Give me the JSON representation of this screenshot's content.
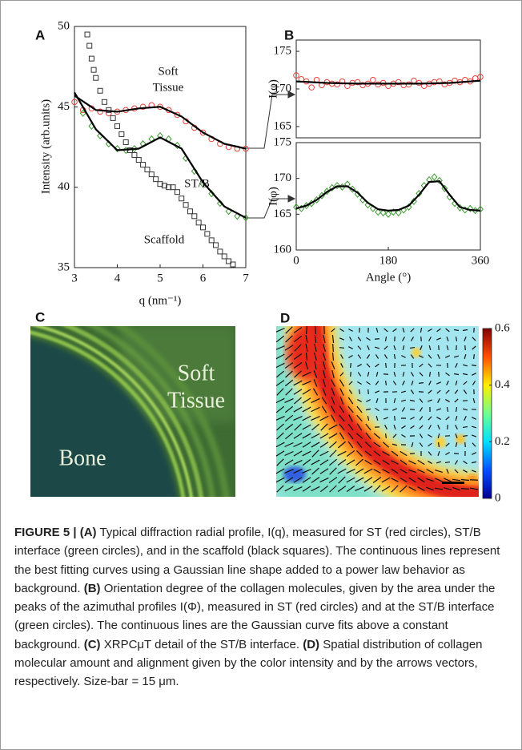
{
  "chart_data": [
    {
      "type": "scatter",
      "panel": "A",
      "xlabel": "q (nm⁻¹)",
      "ylabel": "Intensity (arb.units)",
      "xlim": [
        3,
        7
      ],
      "ylim": [
        35,
        50
      ],
      "xticks": [
        3,
        4,
        5,
        6,
        7
      ],
      "yticks": [
        35,
        40,
        45,
        50
      ],
      "annotations": [
        "Soft",
        "Tissue",
        "ST/B",
        "Scaffold"
      ],
      "series": [
        {
          "color": "#e8423a",
          "marker": "circle",
          "x": [
            3.0,
            3.2,
            3.4,
            3.6,
            3.8,
            4.0,
            4.2,
            4.4,
            4.6,
            4.8,
            5.0,
            5.2,
            5.4,
            5.6,
            5.8,
            6.0,
            6.2,
            6.4,
            6.6,
            6.8,
            7.0
          ],
          "values": [
            45.3,
            44.8,
            44.9,
            44.7,
            44.6,
            44.7,
            44.8,
            44.9,
            45.0,
            45.1,
            45.0,
            44.8,
            44.5,
            44.1,
            43.7,
            43.4,
            43.0,
            42.7,
            42.5,
            42.4,
            42.4
          ]
        },
        {
          "color": "#3a9a2e",
          "marker": "diamond",
          "x": [
            3.2,
            3.4,
            3.6,
            3.8,
            4.0,
            4.2,
            4.4,
            4.6,
            4.8,
            5.0,
            5.2,
            5.4,
            5.6,
            5.8,
            6.0,
            6.2,
            6.4,
            6.6,
            6.8,
            7.0
          ],
          "values": [
            44.6,
            43.8,
            43.2,
            42.7,
            42.4,
            42.3,
            42.4,
            42.7,
            43.0,
            43.2,
            43.0,
            42.6,
            41.8,
            41.0,
            40.2,
            39.6,
            39.0,
            38.5,
            38.2,
            38.1
          ]
        },
        {
          "color": "#333333",
          "marker": "square",
          "x": [
            3.3,
            3.35,
            3.4,
            3.45,
            3.5,
            3.6,
            3.7,
            3.8,
            3.9,
            4.0,
            4.1,
            4.2,
            4.3,
            4.4,
            4.5,
            4.6,
            4.7,
            4.8,
            4.9,
            5.0,
            5.1,
            5.2,
            5.3,
            5.4,
            5.5,
            5.6,
            5.7,
            5.8,
            5.9,
            6.0,
            6.1,
            6.2,
            6.3,
            6.4,
            6.5,
            6.6,
            6.7
          ],
          "values": [
            49.5,
            48.8,
            48.0,
            47.3,
            46.8,
            46.0,
            45.3,
            44.8,
            44.3,
            43.8,
            43.3,
            42.8,
            42.3,
            42.0,
            41.7,
            41.4,
            41.1,
            40.8,
            40.5,
            40.2,
            40.1,
            40.0,
            40.0,
            39.7,
            39.3,
            38.9,
            38.5,
            38.2,
            37.8,
            37.5,
            37.1,
            36.7,
            36.4,
            36.0,
            35.7,
            35.4,
            35.2
          ]
        },
        {
          "color": "#000000",
          "marker": "line",
          "x": [
            3.0,
            3.5,
            4.0,
            4.5,
            5.0,
            5.5,
            6.0,
            6.5,
            7.0
          ],
          "values": [
            45.7,
            44.8,
            44.7,
            44.9,
            45.0,
            44.4,
            43.4,
            42.7,
            42.4
          ]
        },
        {
          "color": "#000000",
          "marker": "line",
          "x": [
            3.0,
            3.5,
            4.0,
            4.5,
            5.0,
            5.5,
            6.0,
            6.5,
            7.0
          ],
          "values": [
            45.9,
            43.6,
            42.3,
            42.4,
            43.1,
            42.4,
            40.3,
            38.8,
            38.1
          ]
        }
      ]
    },
    {
      "type": "scatter",
      "panel": "B",
      "ylabel": "I(φ)",
      "xlim": [
        0,
        360
      ],
      "ylim": [
        163.5,
        176.5
      ],
      "yticks": [
        165,
        170,
        175
      ],
      "series": [
        {
          "color": "#e8423a",
          "marker": "circle",
          "x": [
            0,
            10,
            20,
            30,
            40,
            50,
            60,
            70,
            80,
            90,
            100,
            110,
            120,
            130,
            140,
            150,
            160,
            170,
            180,
            190,
            200,
            210,
            220,
            230,
            240,
            250,
            260,
            270,
            280,
            290,
            300,
            310,
            320,
            330,
            340,
            350,
            360
          ],
          "values": [
            171.8,
            171.3,
            171.0,
            170.2,
            171.2,
            170.5,
            170.9,
            170.7,
            170.6,
            171.0,
            170.4,
            170.8,
            170.9,
            170.5,
            170.7,
            171.2,
            170.6,
            170.8,
            170.4,
            170.7,
            170.9,
            170.5,
            170.6,
            171.1,
            170.8,
            170.4,
            170.7,
            170.9,
            171.0,
            170.6,
            170.8,
            171.1,
            170.9,
            171.2,
            171.0,
            171.4,
            171.6
          ]
        },
        {
          "color": "#000000",
          "marker": "line",
          "x": [
            0,
            60,
            120,
            180,
            240,
            300,
            360
          ],
          "values": [
            171.0,
            170.8,
            170.7,
            170.7,
            170.7,
            170.8,
            171.1
          ]
        }
      ]
    },
    {
      "type": "scatter",
      "ylabel": "I(φ)",
      "xlabel": "Angle (°)",
      "xlim": [
        0,
        360
      ],
      "ylim": [
        160,
        175
      ],
      "xticks": [
        0,
        180,
        360
      ],
      "yticks": [
        160,
        165,
        170,
        175
      ],
      "series": [
        {
          "color": "#3a9a2e",
          "marker": "diamond",
          "x": [
            0,
            10,
            20,
            30,
            40,
            50,
            60,
            70,
            80,
            90,
            100,
            110,
            120,
            130,
            140,
            150,
            160,
            170,
            180,
            190,
            200,
            210,
            220,
            230,
            240,
            250,
            260,
            270,
            280,
            290,
            300,
            310,
            320,
            330,
            340,
            350,
            360
          ],
          "values": [
            166.0,
            165.8,
            166.2,
            166.5,
            167.0,
            167.6,
            168.2,
            168.7,
            169.0,
            168.8,
            169.2,
            168.5,
            167.8,
            167.0,
            166.3,
            165.8,
            165.3,
            165.2,
            165.0,
            165.3,
            165.2,
            165.6,
            166.0,
            166.8,
            167.9,
            169.0,
            169.8,
            170.2,
            169.7,
            168.6,
            167.4,
            166.5,
            165.9,
            165.6,
            165.8,
            165.5,
            165.7
          ]
        },
        {
          "color": "#000000",
          "marker": "line",
          "x": [
            0,
            20,
            40,
            60,
            80,
            100,
            120,
            140,
            160,
            180,
            200,
            220,
            240,
            260,
            280,
            300,
            320,
            340,
            360
          ],
          "values": [
            165.8,
            166.2,
            167.0,
            168.1,
            168.9,
            168.9,
            168.0,
            166.6,
            165.7,
            165.5,
            165.6,
            166.2,
            167.7,
            169.5,
            169.6,
            167.7,
            166.0,
            165.6,
            165.5
          ]
        }
      ]
    },
    {
      "type": "colorbar",
      "panel": "D",
      "ylim": [
        0,
        0.6
      ],
      "yticks": [
        0,
        0.2,
        0.4,
        0.6
      ],
      "colors": [
        "#00008f",
        "#0050ff",
        "#00dfff",
        "#70ff8f",
        "#ffef00",
        "#ff5000",
        "#800000"
      ]
    }
  ],
  "image_panel": {
    "panel": "C",
    "labels": [
      "Soft",
      "Tissue",
      "Bone"
    ]
  },
  "caption": [
    {
      "text": "FIGURE 5 | (A)",
      "bold": true
    },
    {
      "text": " Typical diffraction radial profile, I(q), measured for ST (red circles), ST/B interface (green circles), and in the scaffold (black squares). The continuous lines represent the best fitting curves using a Gaussian line shape added to a power law behavior as background. ",
      "bold": false
    },
    {
      "text": "(B)",
      "bold": true
    },
    {
      "text": " Orientation degree of the collagen molecules, given by the area under the peaks of the azimuthal profiles I(Φ), measured in ST (red circles) and at the ST/B interface (green circles). The continuous lines are the Gaussian curve fits above a constant background. ",
      "bold": false
    },
    {
      "text": "(C)",
      "bold": true
    },
    {
      "text": " XRPCμT detail of the ST/B interface. ",
      "bold": false
    },
    {
      "text": "(D)",
      "bold": true
    },
    {
      "text": " Spatial distribution of collagen molecular amount and alignment given by the color intensity and by the arrows vectors, respectively. Size-bar = 15 μm.",
      "bold": false
    }
  ]
}
